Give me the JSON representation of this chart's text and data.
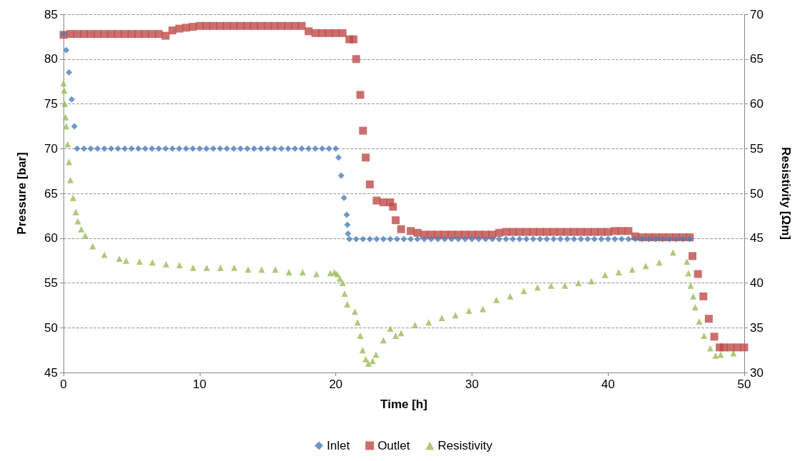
{
  "chart_data": {
    "type": "scatter",
    "xlabel": "Time [h]",
    "ylabel": "Pressure [bar]",
    "y2label": "Resistivity [Ωm]",
    "xlim": [
      0,
      50
    ],
    "xticks": [
      0,
      10,
      20,
      30,
      40,
      50
    ],
    "ylim": [
      45,
      85
    ],
    "yticks": [
      45,
      50,
      55,
      60,
      65,
      70,
      75,
      80,
      85
    ],
    "y2lim": [
      30,
      70
    ],
    "y2ticks": [
      30,
      35,
      40,
      45,
      50,
      55,
      60,
      65,
      70
    ],
    "grid": "y",
    "legend": "bottom",
    "series": [
      {
        "name": "Inlet",
        "color": "#4a7ebb",
        "marker": "diamond",
        "x": [
          0,
          0.2,
          0.4,
          0.6,
          0.8,
          1,
          1.5,
          2,
          2.5,
          3,
          3.5,
          4,
          4.5,
          5,
          5.5,
          6,
          6.5,
          7,
          7.5,
          8,
          8.5,
          9,
          9.5,
          10,
          10.5,
          11,
          11.5,
          12,
          12.5,
          13,
          13.5,
          14,
          14.5,
          15,
          15.5,
          16,
          16.5,
          17,
          17.5,
          18,
          18.5,
          19,
          19.5,
          20,
          20.2,
          20.4,
          20.6,
          20.8,
          20.85,
          20.9,
          21,
          21.5,
          22,
          22.5,
          23,
          23.5,
          24,
          24.5,
          25,
          25.5,
          26,
          26.5,
          27,
          27.5,
          28,
          28.5,
          29,
          29.5,
          30,
          30.5,
          31,
          31.5,
          32,
          32.5,
          33,
          33.5,
          34,
          34.5,
          35,
          35.5,
          36,
          36.5,
          37,
          37.5,
          38,
          38.5,
          39,
          39.5,
          40,
          40.5,
          41,
          41.5,
          42,
          42.5,
          43,
          43.5,
          44,
          44.5,
          45,
          45.5,
          46
        ],
        "values": [
          82.8,
          81,
          78.5,
          75.5,
          72.5,
          70,
          70,
          70,
          70,
          70,
          70,
          70,
          70,
          70,
          70,
          70,
          70,
          70,
          70,
          70,
          70,
          70,
          70,
          70,
          70,
          70,
          70,
          70,
          70,
          70,
          70,
          70,
          70,
          70,
          70,
          70,
          70,
          70,
          70,
          70,
          70,
          70,
          70,
          70,
          69,
          67,
          64.5,
          62.6,
          61.5,
          60.5,
          59.9,
          59.9,
          59.9,
          59.9,
          59.9,
          59.9,
          59.9,
          59.9,
          59.9,
          59.9,
          59.9,
          59.9,
          59.9,
          59.9,
          59.9,
          59.9,
          59.9,
          59.9,
          59.9,
          59.9,
          59.9,
          59.9,
          59.9,
          59.9,
          59.9,
          59.9,
          59.9,
          59.9,
          59.9,
          59.9,
          59.9,
          59.9,
          59.9,
          59.9,
          59.9,
          59.9,
          59.9,
          59.9,
          59.9,
          59.9,
          59.9,
          59.9,
          59.9,
          59.9,
          59.9,
          59.9,
          59.9,
          59.9,
          59.9,
          59.9,
          59.9
        ]
      },
      {
        "name": "Outlet",
        "color": "#be4b48",
        "marker": "square",
        "x": [
          0,
          0.5,
          1,
          1.5,
          2,
          2.5,
          3,
          3.5,
          4,
          4.5,
          5,
          5.5,
          6,
          6.5,
          7,
          7.5,
          8,
          8.5,
          9,
          9.5,
          10,
          10.5,
          11,
          11.5,
          12,
          12.5,
          13,
          13.5,
          14,
          14.5,
          15,
          15.5,
          16,
          16.5,
          17,
          17.5,
          18,
          18.5,
          19,
          19.5,
          20,
          20.5,
          21,
          21.3,
          21.5,
          21.8,
          22,
          22.2,
          22.5,
          23,
          23.5,
          24,
          24.2,
          24.4,
          24.8,
          25.5,
          26,
          26.5,
          27,
          27.5,
          28,
          28.5,
          29,
          29.5,
          30,
          30.5,
          31,
          31.5,
          32,
          32.5,
          33,
          33.5,
          34,
          34.5,
          35,
          35.5,
          36,
          36.5,
          37,
          37.5,
          38,
          38.5,
          39,
          39.5,
          40,
          40.5,
          41,
          41.5,
          42,
          42.5,
          43,
          43.5,
          44,
          44.5,
          45,
          45.5,
          46,
          46.2,
          46.6,
          47,
          47.4,
          47.8,
          48.2,
          48.5,
          49,
          49.5,
          50
        ],
        "values": [
          82.7,
          82.8,
          82.8,
          82.8,
          82.8,
          82.8,
          82.8,
          82.8,
          82.8,
          82.8,
          82.8,
          82.8,
          82.8,
          82.8,
          82.8,
          82.6,
          83.2,
          83.4,
          83.5,
          83.6,
          83.7,
          83.7,
          83.7,
          83.7,
          83.7,
          83.7,
          83.7,
          83.7,
          83.7,
          83.7,
          83.7,
          83.7,
          83.7,
          83.7,
          83.7,
          83.7,
          83.1,
          82.9,
          82.9,
          82.9,
          82.9,
          82.9,
          82.2,
          82.2,
          80,
          76,
          72,
          69,
          66,
          64.2,
          64,
          64,
          63.5,
          62,
          61,
          60.8,
          60.6,
          60.4,
          60.4,
          60.4,
          60.4,
          60.4,
          60.4,
          60.4,
          60.4,
          60.4,
          60.4,
          60.4,
          60.6,
          60.7,
          60.7,
          60.7,
          60.7,
          60.7,
          60.7,
          60.7,
          60.7,
          60.7,
          60.7,
          60.7,
          60.7,
          60.7,
          60.7,
          60.7,
          60.7,
          60.8,
          60.8,
          60.8,
          60.2,
          60.1,
          60.1,
          60.1,
          60.1,
          60.1,
          60.1,
          60.1,
          60.1,
          58,
          56,
          53.5,
          51,
          49,
          47.8,
          47.8,
          47.8,
          47.8,
          47.8
        ]
      },
      {
        "name": "Resistivity",
        "color": "#9bbb59",
        "marker": "triangle",
        "axis": "y2",
        "x": [
          0,
          0.05,
          0.1,
          0.15,
          0.2,
          0.3,
          0.4,
          0.5,
          0.7,
          0.9,
          1.05,
          1.3,
          1.6,
          2.15,
          3,
          4.1,
          4.6,
          5.59,
          6.53,
          7.53,
          8.52,
          9.52,
          10.52,
          11.53,
          12.54,
          13.56,
          14.55,
          15.56,
          16.56,
          17.56,
          18.58,
          19.6,
          19.9,
          20.1,
          20.3,
          20.5,
          20.65,
          20.85,
          21.4,
          21.6,
          21.8,
          21.97,
          22.2,
          22.4,
          22.7,
          22.95,
          23.5,
          24,
          24.4,
          24.8,
          25.82,
          26.82,
          27.79,
          28.79,
          29.79,
          30.8,
          31.8,
          32.81,
          33.81,
          34.82,
          35.81,
          36.83,
          37.82,
          38.78,
          39.78,
          40.78,
          41.77,
          42.77,
          43.76,
          44.77,
          45.79,
          45.9,
          46.07,
          46.26,
          46.4,
          46.7,
          47.05,
          47.5,
          47.9,
          48.27,
          49.2
        ],
        "values": [
          62.3,
          61.5,
          60,
          58.5,
          57.5,
          55.5,
          53.5,
          51.5,
          49.5,
          47.9,
          46.9,
          46,
          45.3,
          44.1,
          43.15,
          42.7,
          42.5,
          42.4,
          42.3,
          42.1,
          42,
          41.7,
          41.7,
          41.7,
          41.7,
          41.5,
          41.5,
          41.5,
          41.2,
          41.2,
          41,
          41.1,
          41.2,
          41,
          40.5,
          40,
          38.8,
          37.6,
          36.8,
          35.6,
          34.1,
          32.5,
          31.5,
          31,
          31.3,
          32,
          33.6,
          34.9,
          34.1,
          34.4,
          35.3,
          35.6,
          36.1,
          36.4,
          36.9,
          37.1,
          38.1,
          38.5,
          39.1,
          39.5,
          39.7,
          39.7,
          40,
          40.2,
          40.9,
          41.2,
          41.5,
          41.9,
          42.3,
          43.4,
          42.4,
          41.1,
          39.7,
          38.5,
          37.3,
          35.7,
          34.1,
          32.7,
          31.9,
          32,
          32.15
        ]
      }
    ]
  }
}
